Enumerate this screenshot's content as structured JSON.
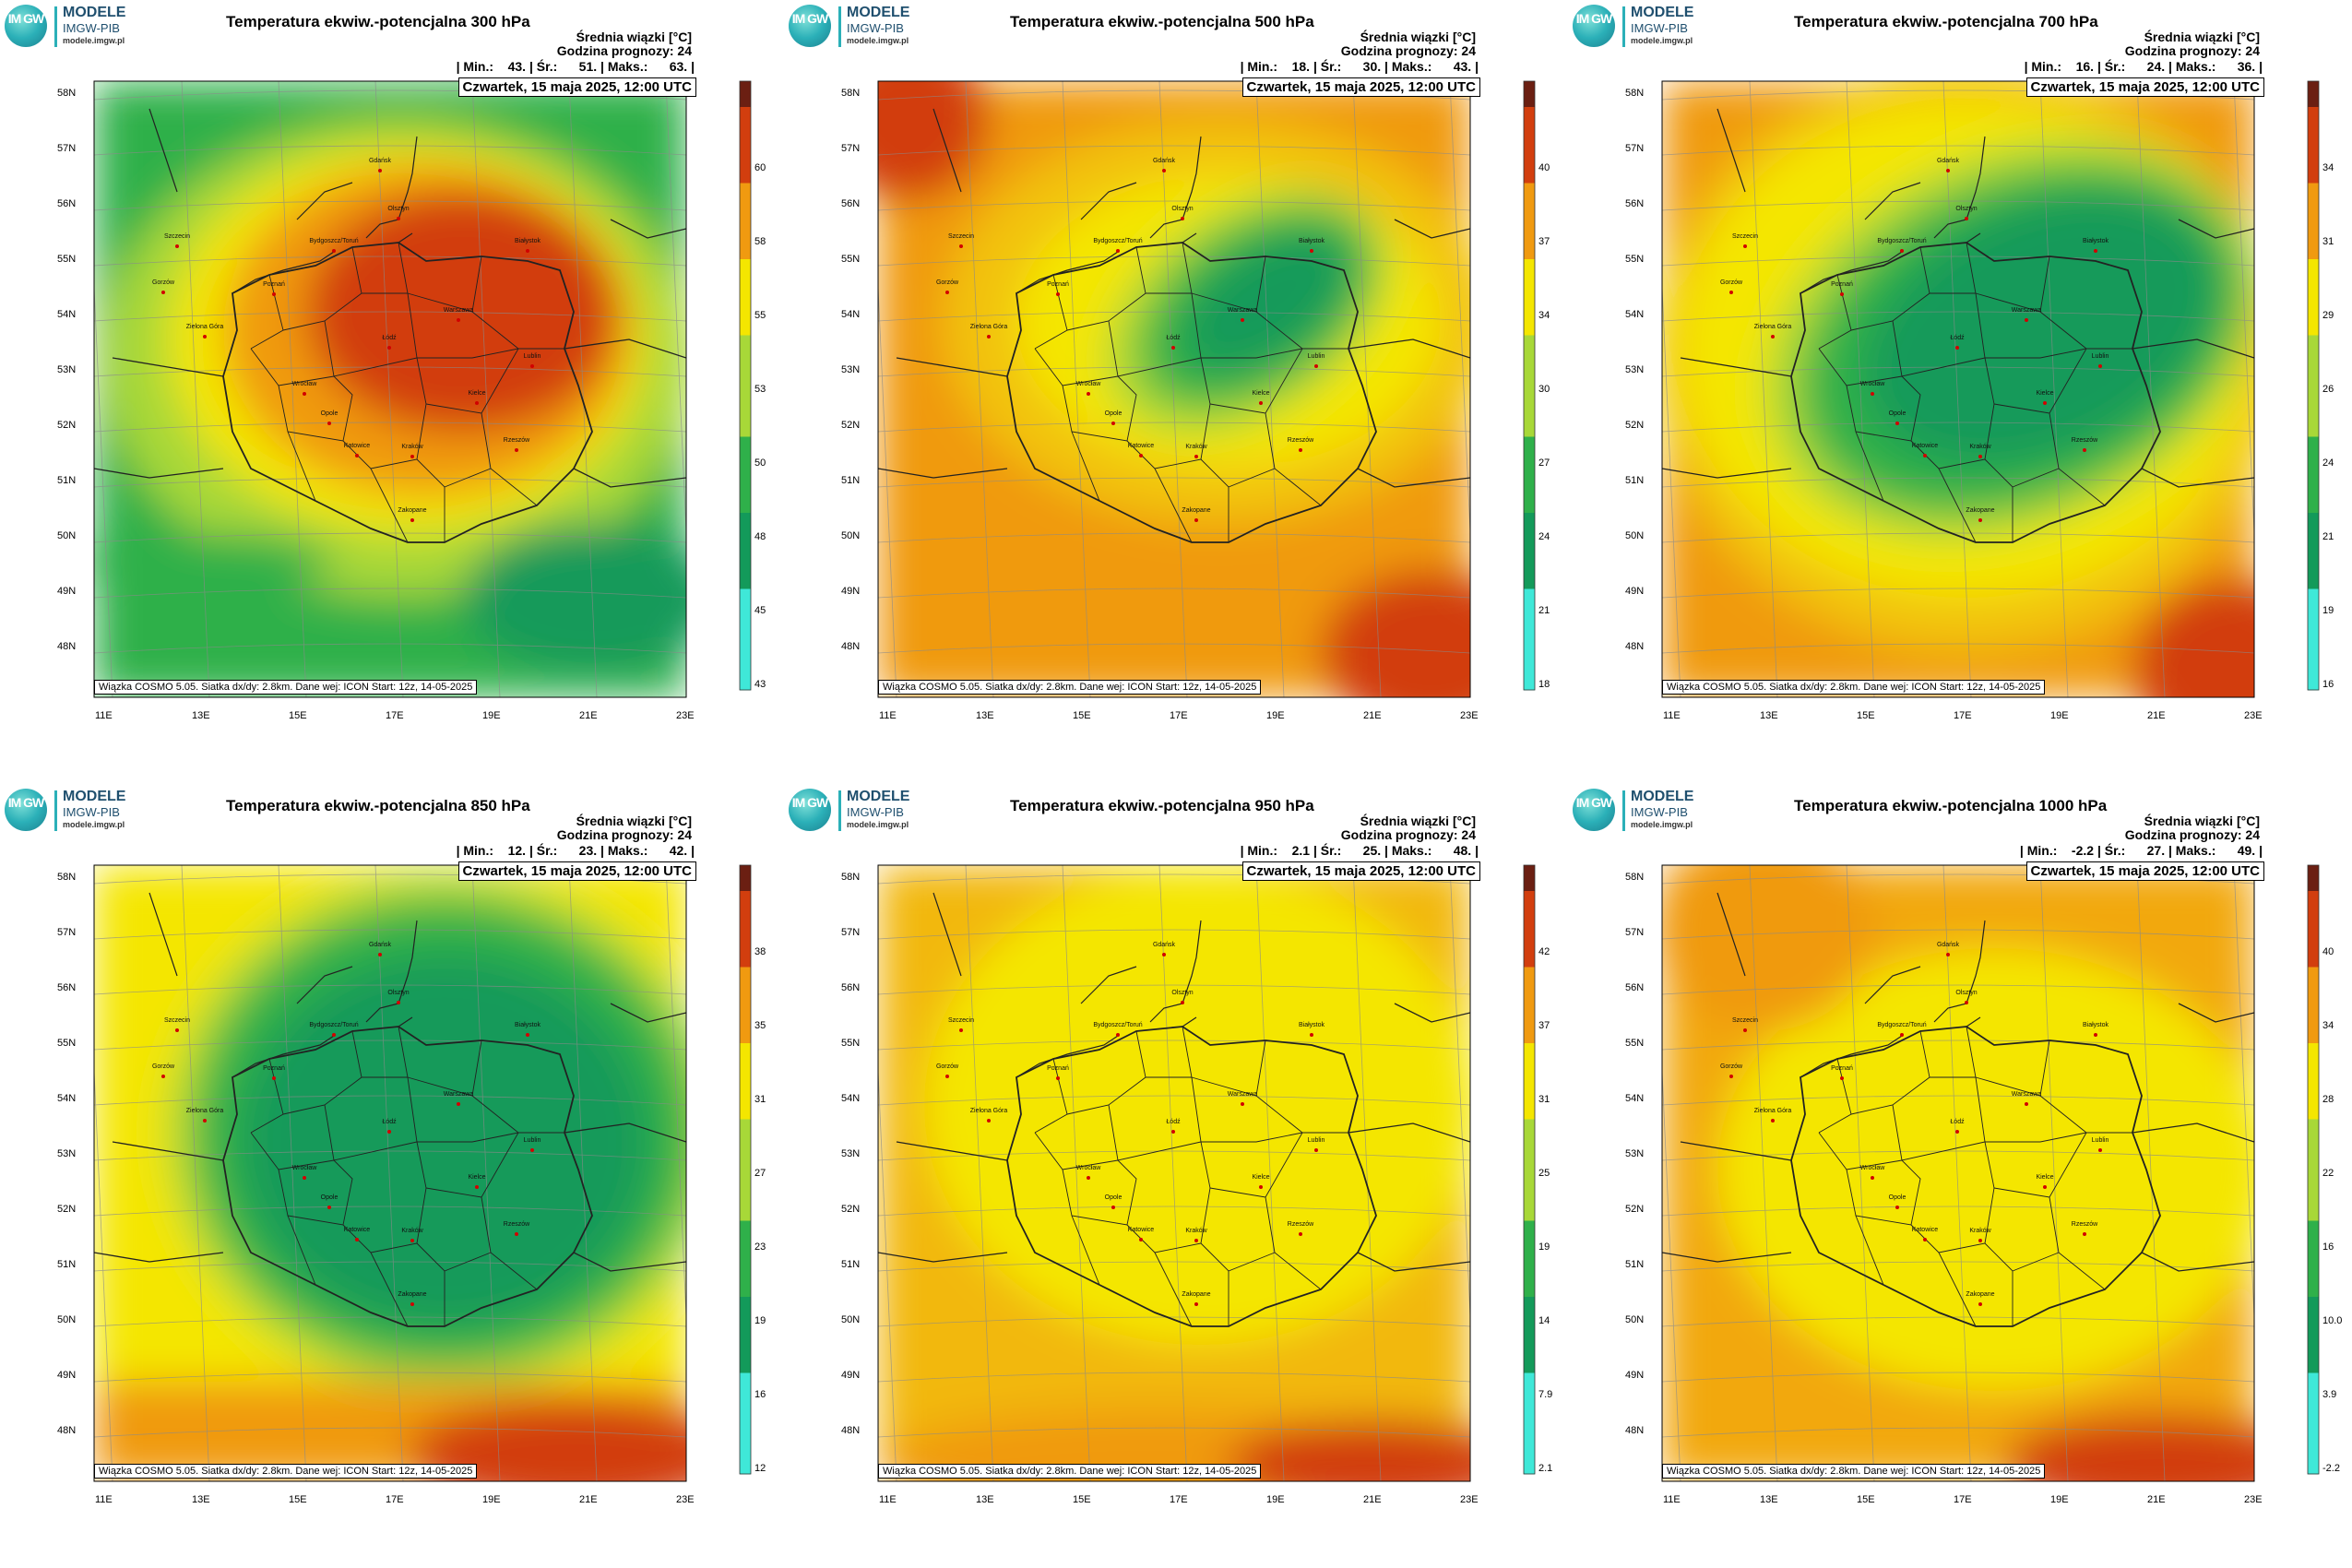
{
  "logo": {
    "circle_text": "IM GW",
    "line1": "MODELE",
    "line2": "IMGW-PIB",
    "line3": "modele.imgw.pl"
  },
  "header": {
    "avg_label": "Średnia wiązki [°C]",
    "forecast_hour": "Godzina prognozy: 24"
  },
  "date_text": "Czwartek, 15 maja 2025, 12:00 UTC",
  "footer_text": "Wiązka COSMO 5.05. Siatka dx/dy: 2.8km. Dane wej: ICON Start: 12z, 14-05-2025",
  "lat_labels": [
    "58N",
    "57N",
    "56N",
    "55N",
    "54N",
    "53N",
    "52N",
    "51N",
    "50N",
    "49N",
    "48N"
  ],
  "lon_labels": [
    "11E",
    "13E",
    "15E",
    "17E",
    "19E",
    "21E",
    "23E"
  ],
  "cities": [
    "Gdańsk",
    "Olsztyn",
    "Białystok",
    "Szczecin",
    "Bydgoszcz/Toruń",
    "Gorzów",
    "Poznań",
    "Warszawa",
    "Zielona Góra",
    "Łódź",
    "Lublin",
    "Wrocław",
    "Kielce",
    "Opole",
    "Katowice",
    "Kraków",
    "Rzeszów",
    "Zakopane"
  ],
  "colors": {
    "cyan": "#3fe8d8",
    "green_dark": "#139a5a",
    "green": "#2fb04a",
    "yellowgreen": "#a8d838",
    "yellow": "#f4e600",
    "orange": "#f09a10",
    "red": "#d23e0e",
    "brown": "#6b1f12"
  },
  "panels": [
    {
      "title": "Temperatura ekwiw.-potencjalna 300 hPa",
      "stats": "| Min.:    43. | Śr.:      51. | Maks.:      63. |",
      "colorbar_ticks": [
        "60",
        "58",
        "55",
        "53",
        "50",
        "48",
        "45",
        "43"
      ],
      "pattern": "p300"
    },
    {
      "title": "Temperatura ekwiw.-potencjalna 500 hPa",
      "stats": "| Min.:    18. | Śr.:      30. | Maks.:      43. |",
      "colorbar_ticks": [
        "40",
        "37",
        "34",
        "30",
        "27",
        "24",
        "21",
        "18"
      ],
      "pattern": "p500"
    },
    {
      "title": "Temperatura ekwiw.-potencjalna 700 hPa",
      "stats": "| Min.:    16. | Śr.:      24. | Maks.:      36. |",
      "colorbar_ticks": [
        "34",
        "31",
        "29",
        "26",
        "24",
        "21",
        "19",
        "16"
      ],
      "pattern": "p700"
    },
    {
      "title": "Temperatura ekwiw.-potencjalna 850 hPa",
      "stats": "| Min.:    12. | Śr.:      23. | Maks.:      42. |",
      "colorbar_ticks": [
        "38",
        "35",
        "31",
        "27",
        "23",
        "19",
        "16",
        "12"
      ],
      "pattern": "p850"
    },
    {
      "title": "Temperatura ekwiw.-potencjalna 950 hPa",
      "stats": "| Min.:    2.1 | Śr.:      25. | Maks.:      48. |",
      "colorbar_ticks": [
        "42",
        "37",
        "31",
        "25",
        "19",
        "14",
        "7.9",
        "2.1"
      ],
      "pattern": "p950"
    },
    {
      "title": "Temperatura ekwiw.-potencjalna 1000 hPa",
      "stats": "| Min.:    -2.2 | Śr.:      27. | Maks.:      49. |",
      "colorbar_ticks": [
        "40",
        "34",
        "28",
        "22",
        "16",
        "10.0",
        "3.9",
        "-2.2"
      ],
      "pattern": "p1000"
    }
  ]
}
